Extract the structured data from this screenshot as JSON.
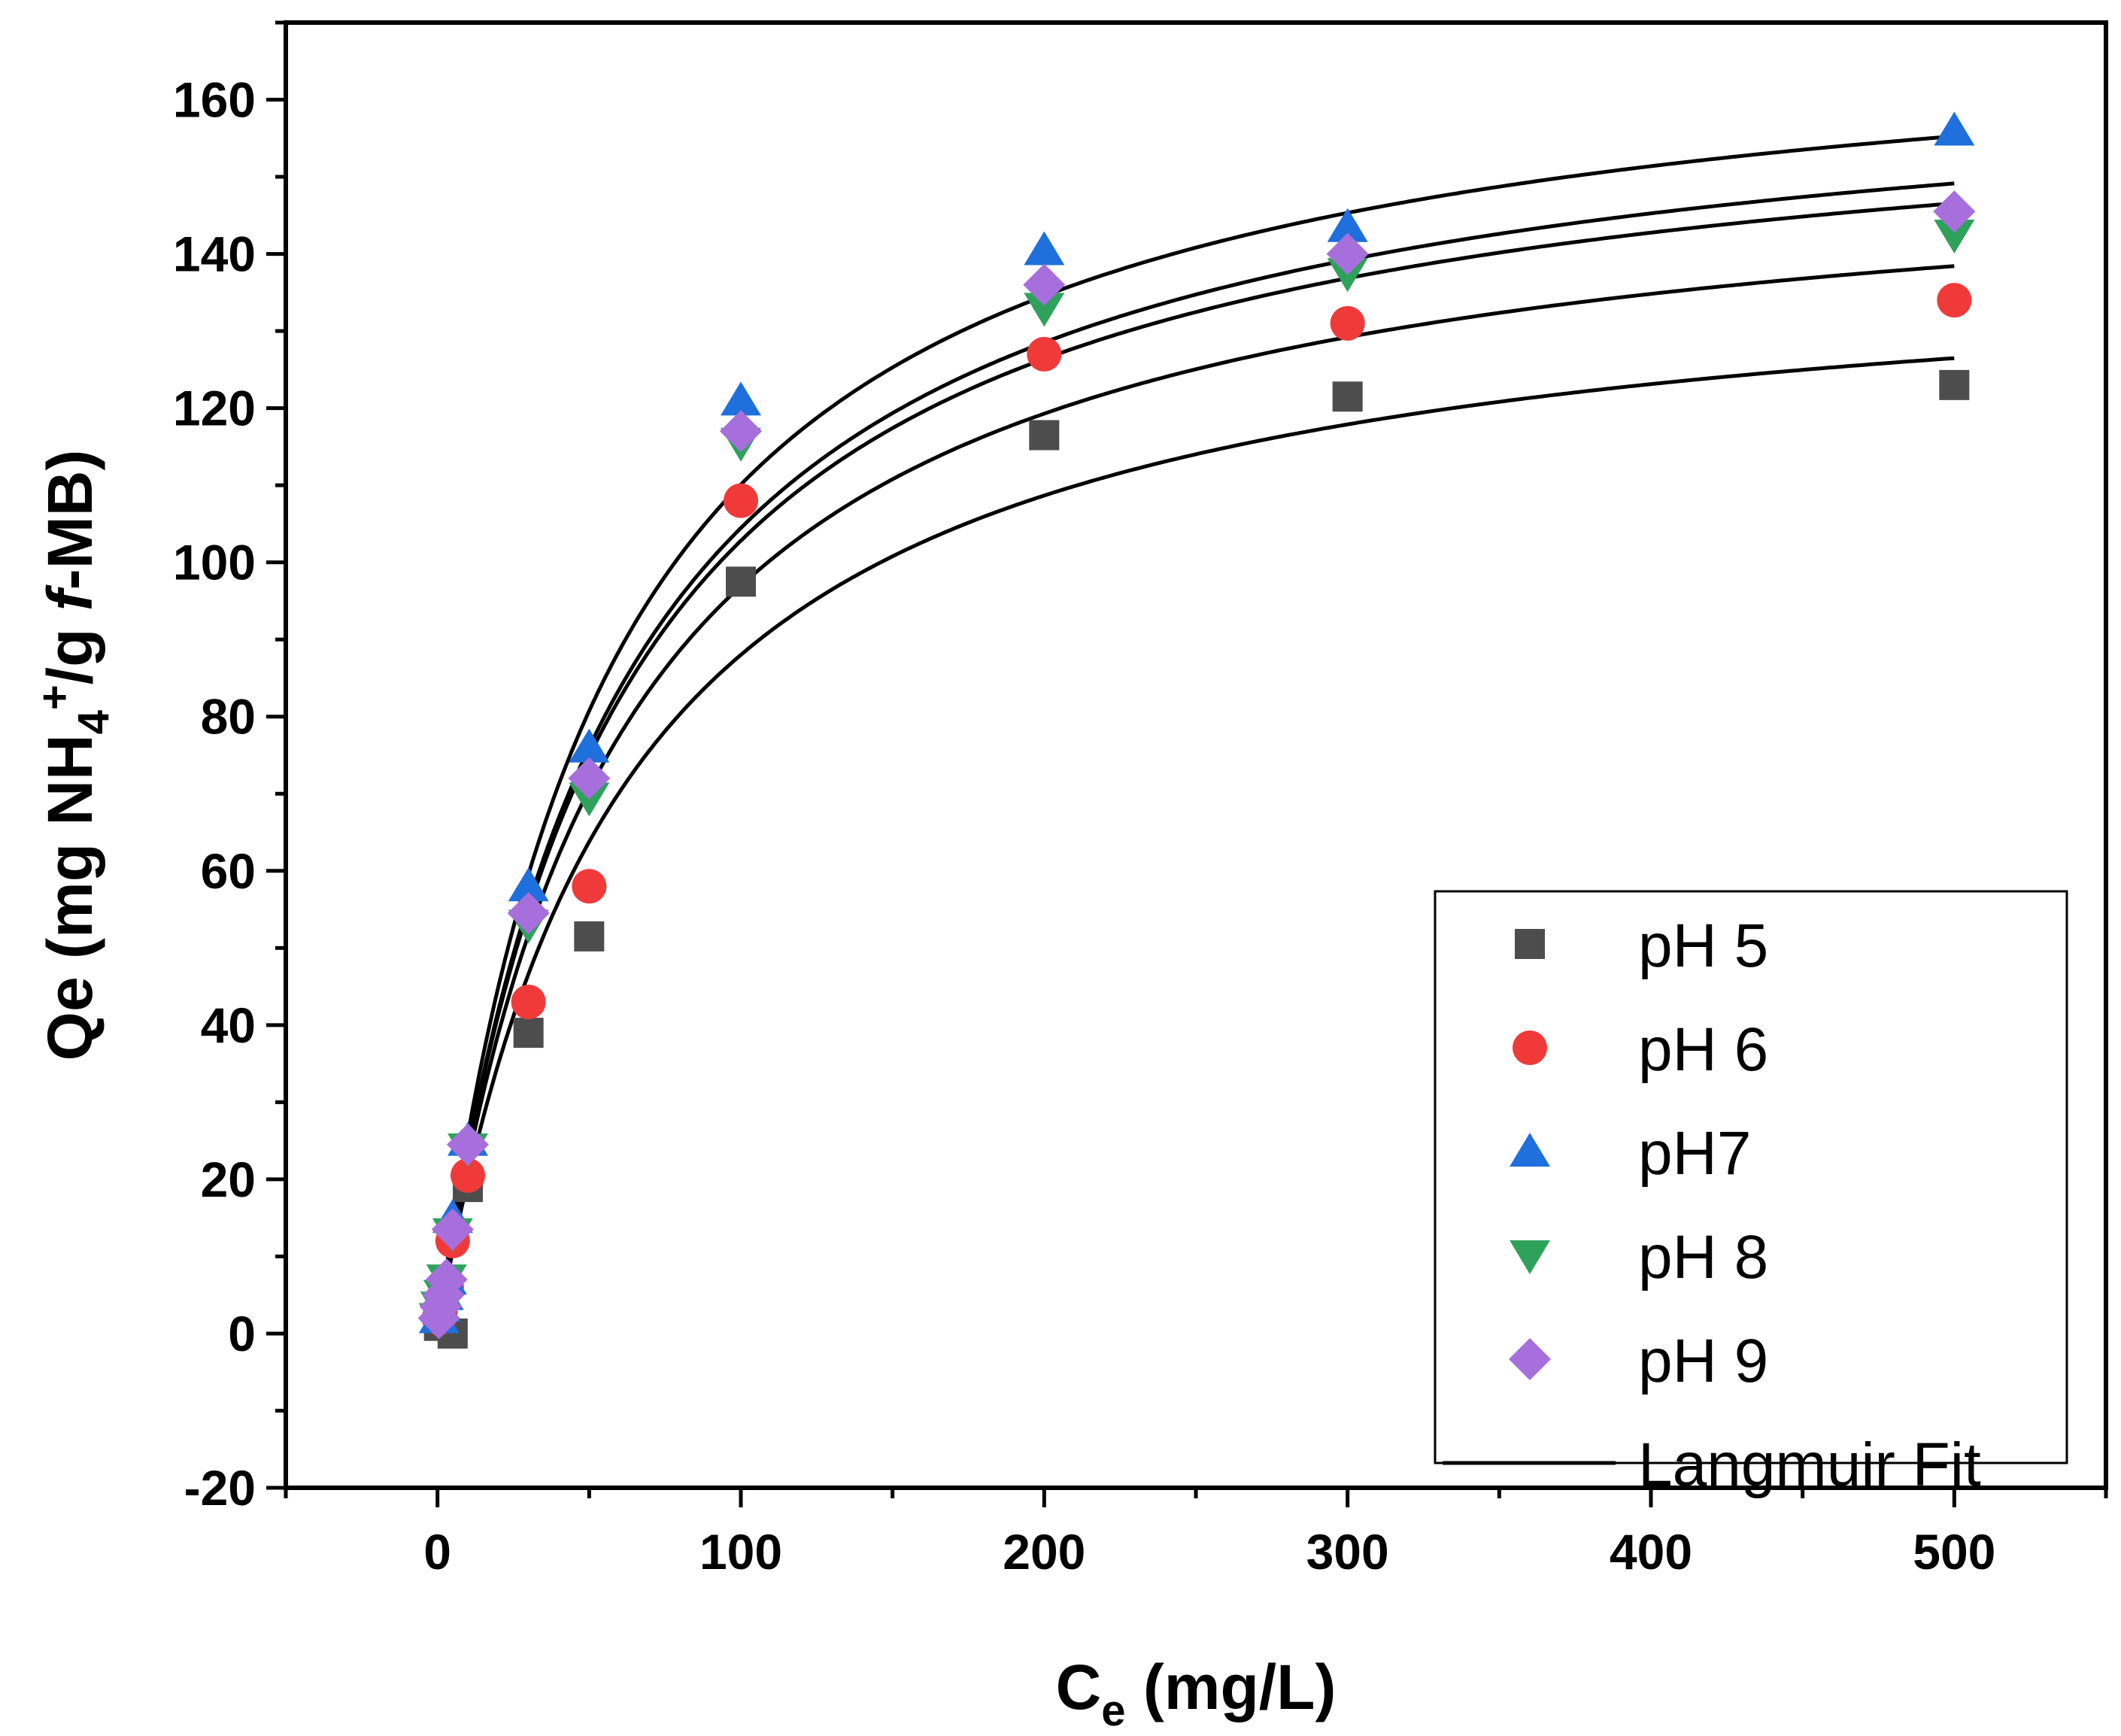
{
  "chart_data": {
    "type": "scatter",
    "xlabel": {
      "main": "C",
      "sub": "e",
      "rest": " (mg/L)"
    },
    "ylabel": {
      "pre": "Qe (mg NH",
      "sub": "4",
      "sup": "+",
      "mid": "/g ",
      "italic": "f",
      "post": "-MB)"
    },
    "xlim": [
      -50,
      550
    ],
    "ylim": [
      -20,
      170
    ],
    "xticks": [
      0,
      100,
      200,
      300,
      400,
      500
    ],
    "yticks": [
      -20,
      0,
      20,
      40,
      60,
      80,
      100,
      120,
      140,
      160
    ],
    "x_minor_step": 50,
    "y_minor_step": 10,
    "x": [
      0.5,
      1,
      2,
      3,
      5,
      10,
      30,
      50,
      100,
      200,
      300,
      500
    ],
    "series": [
      {
        "name": "pH 5",
        "marker": "square",
        "color": "#4d4d4d",
        "x": [
          0.5,
          5,
          10,
          30,
          50,
          100,
          200,
          300,
          500
        ],
        "values": [
          1,
          0,
          19,
          39,
          51.5,
          97.5,
          116.5,
          121.5,
          123
        ],
        "fit": {
          "qmax": 142,
          "K": 0.0163
        }
      },
      {
        "name": "pH 6",
        "marker": "circle",
        "color": "#f03a3a",
        "x": [
          0.5,
          1,
          3,
          5,
          10,
          30,
          50,
          100,
          200,
          300,
          500
        ],
        "values": [
          2,
          3,
          6,
          12,
          20.5,
          43,
          58,
          108,
          127,
          131,
          134
        ],
        "fit": {
          "qmax": 155,
          "K": 0.0167
        }
      },
      {
        "name": "pH7",
        "marker": "triangle-up",
        "color": "#1f6fdc",
        "x": [
          0.5,
          1,
          2,
          3,
          5,
          10,
          30,
          50,
          100,
          200,
          300,
          500
        ],
        "values": [
          2,
          3.5,
          5,
          7,
          15,
          25,
          58,
          76,
          121,
          140.5,
          143.5,
          156
        ],
        "fit": {
          "qmax": 173,
          "K": 0.0175
        }
      },
      {
        "name": "pH 8",
        "marker": "triangle-down",
        "color": "#2ea25a",
        "x": [
          0.5,
          1,
          2,
          3,
          5,
          10,
          30,
          50,
          100,
          200,
          300,
          500
        ],
        "values": [
          2,
          3.5,
          5,
          7,
          13,
          24,
          53,
          69.5,
          115.5,
          133,
          137.5,
          142.5
        ],
        "fit": {
          "qmax": 164,
          "K": 0.0168
        }
      },
      {
        "name": "pH 9",
        "marker": "diamond",
        "color": "#a66fdc",
        "x": [
          0.5,
          1,
          2,
          3,
          5,
          10,
          30,
          50,
          100,
          200,
          300,
          500
        ],
        "values": [
          2,
          3.5,
          5,
          7,
          13.5,
          24.5,
          54.5,
          72,
          117,
          136,
          140,
          145.5
        ],
        "fit": {
          "qmax": 167,
          "K": 0.0167
        }
      }
    ],
    "fit_label": "Langmuir Fit",
    "fit_color": "#000000",
    "legend_position": "bottom-right",
    "grid": false
  }
}
